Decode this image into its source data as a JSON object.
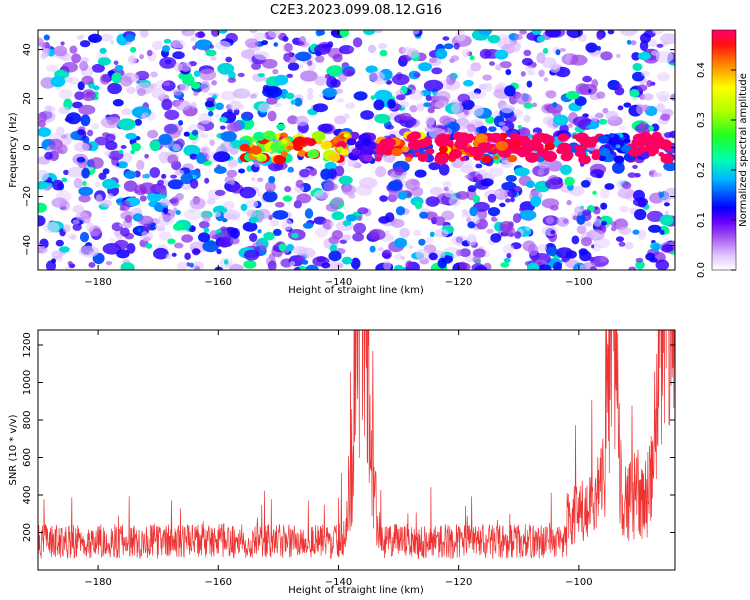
{
  "title": "C2E3.2023.099.08.12.G16",
  "chart_data": [
    {
      "type": "heatmap",
      "xlabel": "Height of straight line (km)",
      "ylabel": "Frequency (Hz)",
      "xlim": [
        -190,
        -84
      ],
      "ylim": [
        -50,
        48
      ],
      "x_ticks": [
        -180,
        -160,
        -140,
        -120,
        -100
      ],
      "y_ticks": [
        -40,
        -20,
        0,
        20,
        40
      ],
      "colorbar": {
        "label": "Normalized spectral amplitude",
        "range": [
          0.0,
          0.48
        ],
        "ticks": [
          0.0,
          0.1,
          0.2,
          0.3,
          0.4
        ],
        "colormap": [
          "#ffffff",
          "#d9b3ff",
          "#8a2be2",
          "#3a00ff",
          "#0000ff",
          "#00c8ff",
          "#00ff80",
          "#80ff00",
          "#ffff00",
          "#ff8000",
          "#ff0000",
          "#ff0060"
        ]
      },
      "signal_band": {
        "frequency_hz": 0,
        "x_range": [
          -157,
          -85
        ],
        "peak_x": -85,
        "peak_value": 0.45
      },
      "quiet_columns_km": [
        -136,
        -94
      ]
    },
    {
      "type": "line",
      "xlabel": "Height of straight line (km)",
      "ylabel": "SNR (10 * v/v)",
      "xlim": [
        -190,
        -84
      ],
      "ylim": [
        0,
        1280
      ],
      "x_ticks": [
        -180,
        -160,
        -140,
        -120,
        -100
      ],
      "y_ticks": [
        200,
        400,
        600,
        800,
        1000,
        1200
      ],
      "color": "#ee3333",
      "baseline": 170,
      "features": [
        {
          "x": -136.5,
          "value": 1120
        },
        {
          "x": -135.5,
          "value": 930
        },
        {
          "x": -94.5,
          "value": 1280
        },
        {
          "x": -86,
          "value": 1250
        },
        {
          "x": -85,
          "value": 1050
        }
      ]
    }
  ]
}
